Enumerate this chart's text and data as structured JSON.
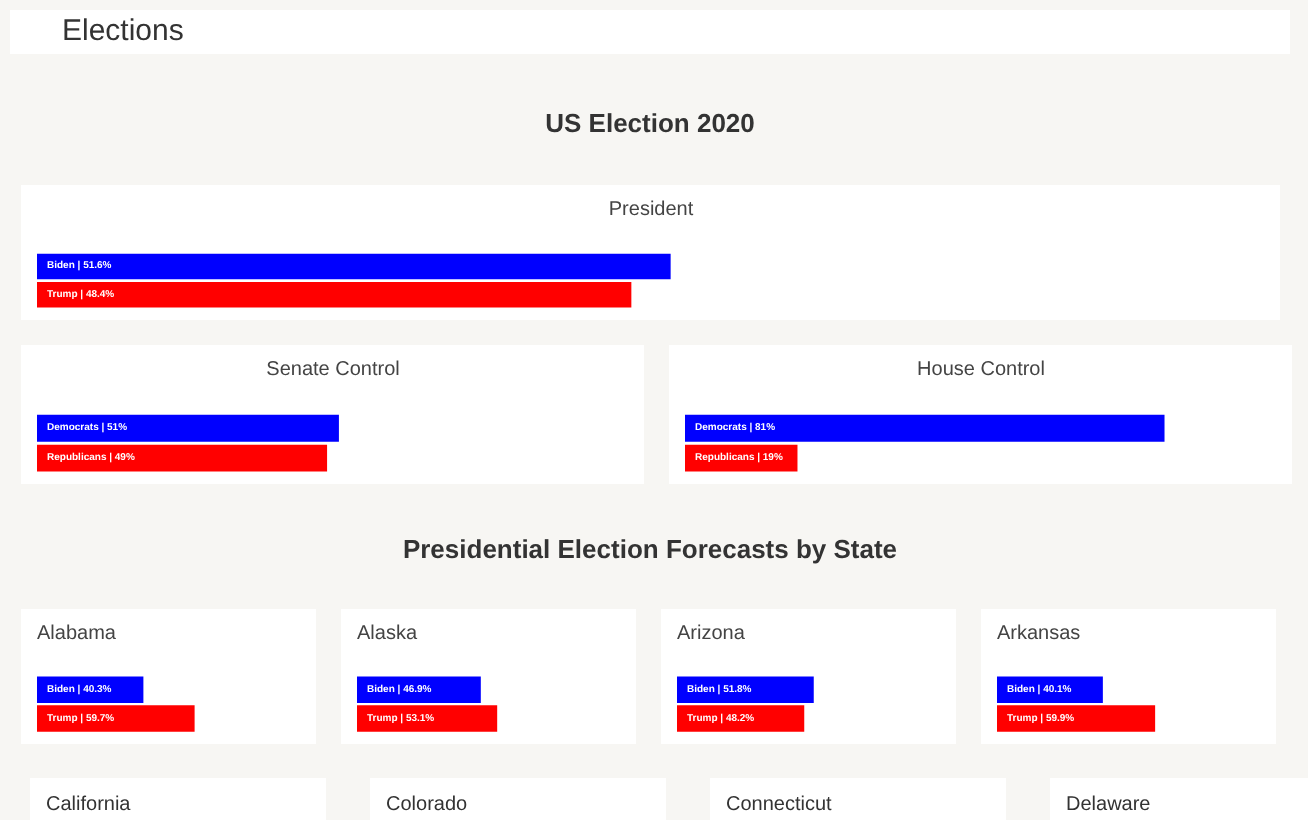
{
  "chart_data": [
    {
      "type": "other",
      "title": "Elections"
    },
    {
      "type": "other",
      "title": "US Election 2020"
    },
    {
      "type": "bar",
      "orientation": "horizontal",
      "title": "President",
      "categories": [
        null,
        null
      ],
      "values": [
        51.6,
        48.4
      ],
      "colors": [
        "#0000ff",
        "#ff0000"
      ],
      "value_labels": [
        "Biden | 51.6%",
        "Trump | 48.4%"
      ],
      "xlim": [
        0,
        100
      ],
      "tick_labels": false
    },
    {
      "type": "bar",
      "orientation": "horizontal",
      "title": "Senate Control",
      "categories": [
        null,
        null
      ],
      "values": [
        51,
        49
      ],
      "colors": [
        "#0000ff",
        "#ff0000"
      ],
      "value_labels": [
        "Democrats | 51%",
        "Republicans | 49%"
      ],
      "xlim": [
        0,
        100
      ],
      "tick_labels": false
    },
    {
      "type": "bar",
      "orientation": "horizontal",
      "title": "House Control",
      "categories": [
        null,
        null
      ],
      "values": [
        81,
        19
      ],
      "colors": [
        "#0000ff",
        "#ff0000"
      ],
      "value_labels": [
        "Democrats | 81%",
        "Republicans | 19%"
      ],
      "xlim": [
        0,
        100
      ],
      "tick_labels": false
    },
    {
      "type": "other",
      "title": "Presidential Election Forecasts by State"
    },
    {
      "type": "bar",
      "orientation": "horizontal",
      "title": "Alabama",
      "categories": [
        null,
        null
      ],
      "values": [
        40.3,
        59.7
      ],
      "colors": [
        "#0000ff",
        "#ff0000"
      ],
      "value_labels": [
        "Biden | 40.3%",
        "Trump | 59.7%"
      ],
      "xlim": [
        0,
        100
      ],
      "tick_labels": false
    },
    {
      "type": "bar",
      "orientation": "horizontal",
      "title": "Alaska",
      "categories": [
        null,
        null
      ],
      "values": [
        46.9,
        53.1
      ],
      "colors": [
        "#0000ff",
        "#ff0000"
      ],
      "value_labels": [
        "Biden | 46.9%",
        "Trump | 53.1%"
      ],
      "xlim": [
        0,
        100
      ],
      "tick_labels": false
    },
    {
      "type": "bar",
      "orientation": "horizontal",
      "title": "Arizona",
      "categories": [
        null,
        null
      ],
      "values": [
        51.8,
        48.2
      ],
      "colors": [
        "#0000ff",
        "#ff0000"
      ],
      "value_labels": [
        "Biden | 51.8%",
        "Trump | 48.2%"
      ],
      "xlim": [
        0,
        100
      ],
      "tick_labels": false
    },
    {
      "type": "bar",
      "orientation": "horizontal",
      "title": "Arkansas",
      "categories": [
        null,
        null
      ],
      "values": [
        40.1,
        59.9
      ],
      "colors": [
        "#0000ff",
        "#ff0000"
      ],
      "value_labels": [
        "Biden | 40.1%",
        "Trump | 59.9%"
      ],
      "xlim": [
        0,
        100
      ],
      "tick_labels": false
    },
    {
      "type": "other",
      "title": "California"
    },
    {
      "type": "other",
      "title": "Colorado"
    },
    {
      "type": "other",
      "title": "Connecticut"
    },
    {
      "type": "other",
      "title": "Delaware"
    }
  ]
}
